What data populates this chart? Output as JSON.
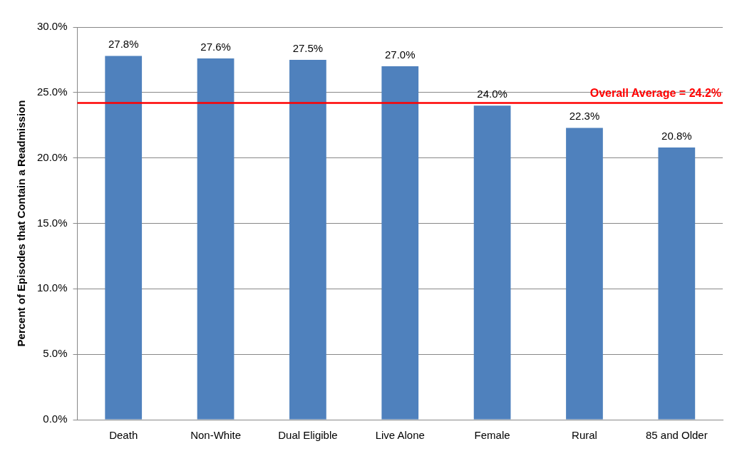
{
  "chart_data": {
    "type": "bar",
    "ylabel": "Percent of Episodes that Contain a Readmission",
    "categories": [
      "Death",
      "Non-White",
      "Dual Eligible",
      "Live Alone",
      "Female",
      "Rural",
      "85 and Older"
    ],
    "values": [
      27.8,
      27.6,
      27.5,
      27.0,
      24.0,
      22.3,
      20.8
    ],
    "value_labels": [
      "27.8%",
      "27.6%",
      "27.5%",
      "27.0%",
      "24.0%",
      "22.3%",
      "20.8%"
    ],
    "color": "#4f81bd",
    "ylim": [
      0,
      30
    ],
    "yticks": [
      {
        "value": 0,
        "label": "0.0%"
      },
      {
        "value": 5,
        "label": "5.0%"
      },
      {
        "value": 10,
        "label": "10.0%"
      },
      {
        "value": 15,
        "label": "15.0%"
      },
      {
        "value": 20,
        "label": "20.0%"
      },
      {
        "value": 25,
        "label": "25.0%"
      },
      {
        "value": 30,
        "label": "30.0%"
      }
    ],
    "grid": "y",
    "legend": false,
    "ref_lines": [
      {
        "axis": "y",
        "value": 24.2,
        "label": "Overall Average = 24.2%",
        "color": "#ff0000"
      }
    ]
  }
}
